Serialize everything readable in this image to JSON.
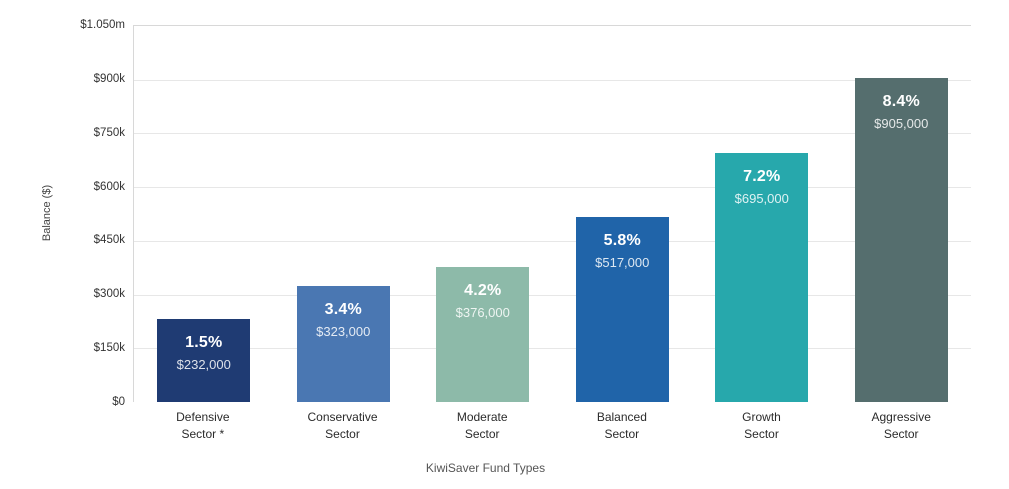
{
  "chart_data": {
    "type": "bar",
    "title": "",
    "xlabel": "KiwiSaver Fund Types",
    "ylabel": "Balance ($)",
    "ylim": [
      0,
      1050000
    ],
    "grid": true,
    "gridline_color": "#e7e7e7",
    "axis_line_color": "#d8d8d8",
    "yticks": [
      {
        "value": 0,
        "label": "$0"
      },
      {
        "value": 150000,
        "label": "$150k"
      },
      {
        "value": 300000,
        "label": "$300k"
      },
      {
        "value": 450000,
        "label": "$450k"
      },
      {
        "value": 600000,
        "label": "$600k"
      },
      {
        "value": 750000,
        "label": "$750k"
      },
      {
        "value": 900000,
        "label": "$900k"
      },
      {
        "value": 1050000,
        "label": "$1.050m"
      }
    ],
    "categories": [
      "Defensive\nSector *",
      "Conservative\nSector",
      "Moderate\nSector",
      "Balanced\nSector",
      "Growth\nSector",
      "Aggressive\nSector"
    ],
    "bars": [
      {
        "category": "Defensive\nSector *",
        "rate": "1.5%",
        "balance": "$232,000",
        "value": 232000,
        "color": "#1f3b73"
      },
      {
        "category": "Conservative\nSector",
        "rate": "3.4%",
        "balance": "$323,000",
        "value": 323000,
        "color": "#4a77b2"
      },
      {
        "category": "Moderate\nSector",
        "rate": "4.2%",
        "balance": "$376,000",
        "value": 376000,
        "color": "#8dbaa9"
      },
      {
        "category": "Balanced\nSector",
        "rate": "5.8%",
        "balance": "$517,000",
        "value": 517000,
        "color": "#2064a9"
      },
      {
        "category": "Growth\nSector",
        "rate": "7.2%",
        "balance": "$695,000",
        "value": 695000,
        "color": "#27a8ac"
      },
      {
        "category": "Aggressive\nSector",
        "rate": "8.4%",
        "balance": "$905,000",
        "value": 905000,
        "color": "#556e6e"
      }
    ]
  }
}
